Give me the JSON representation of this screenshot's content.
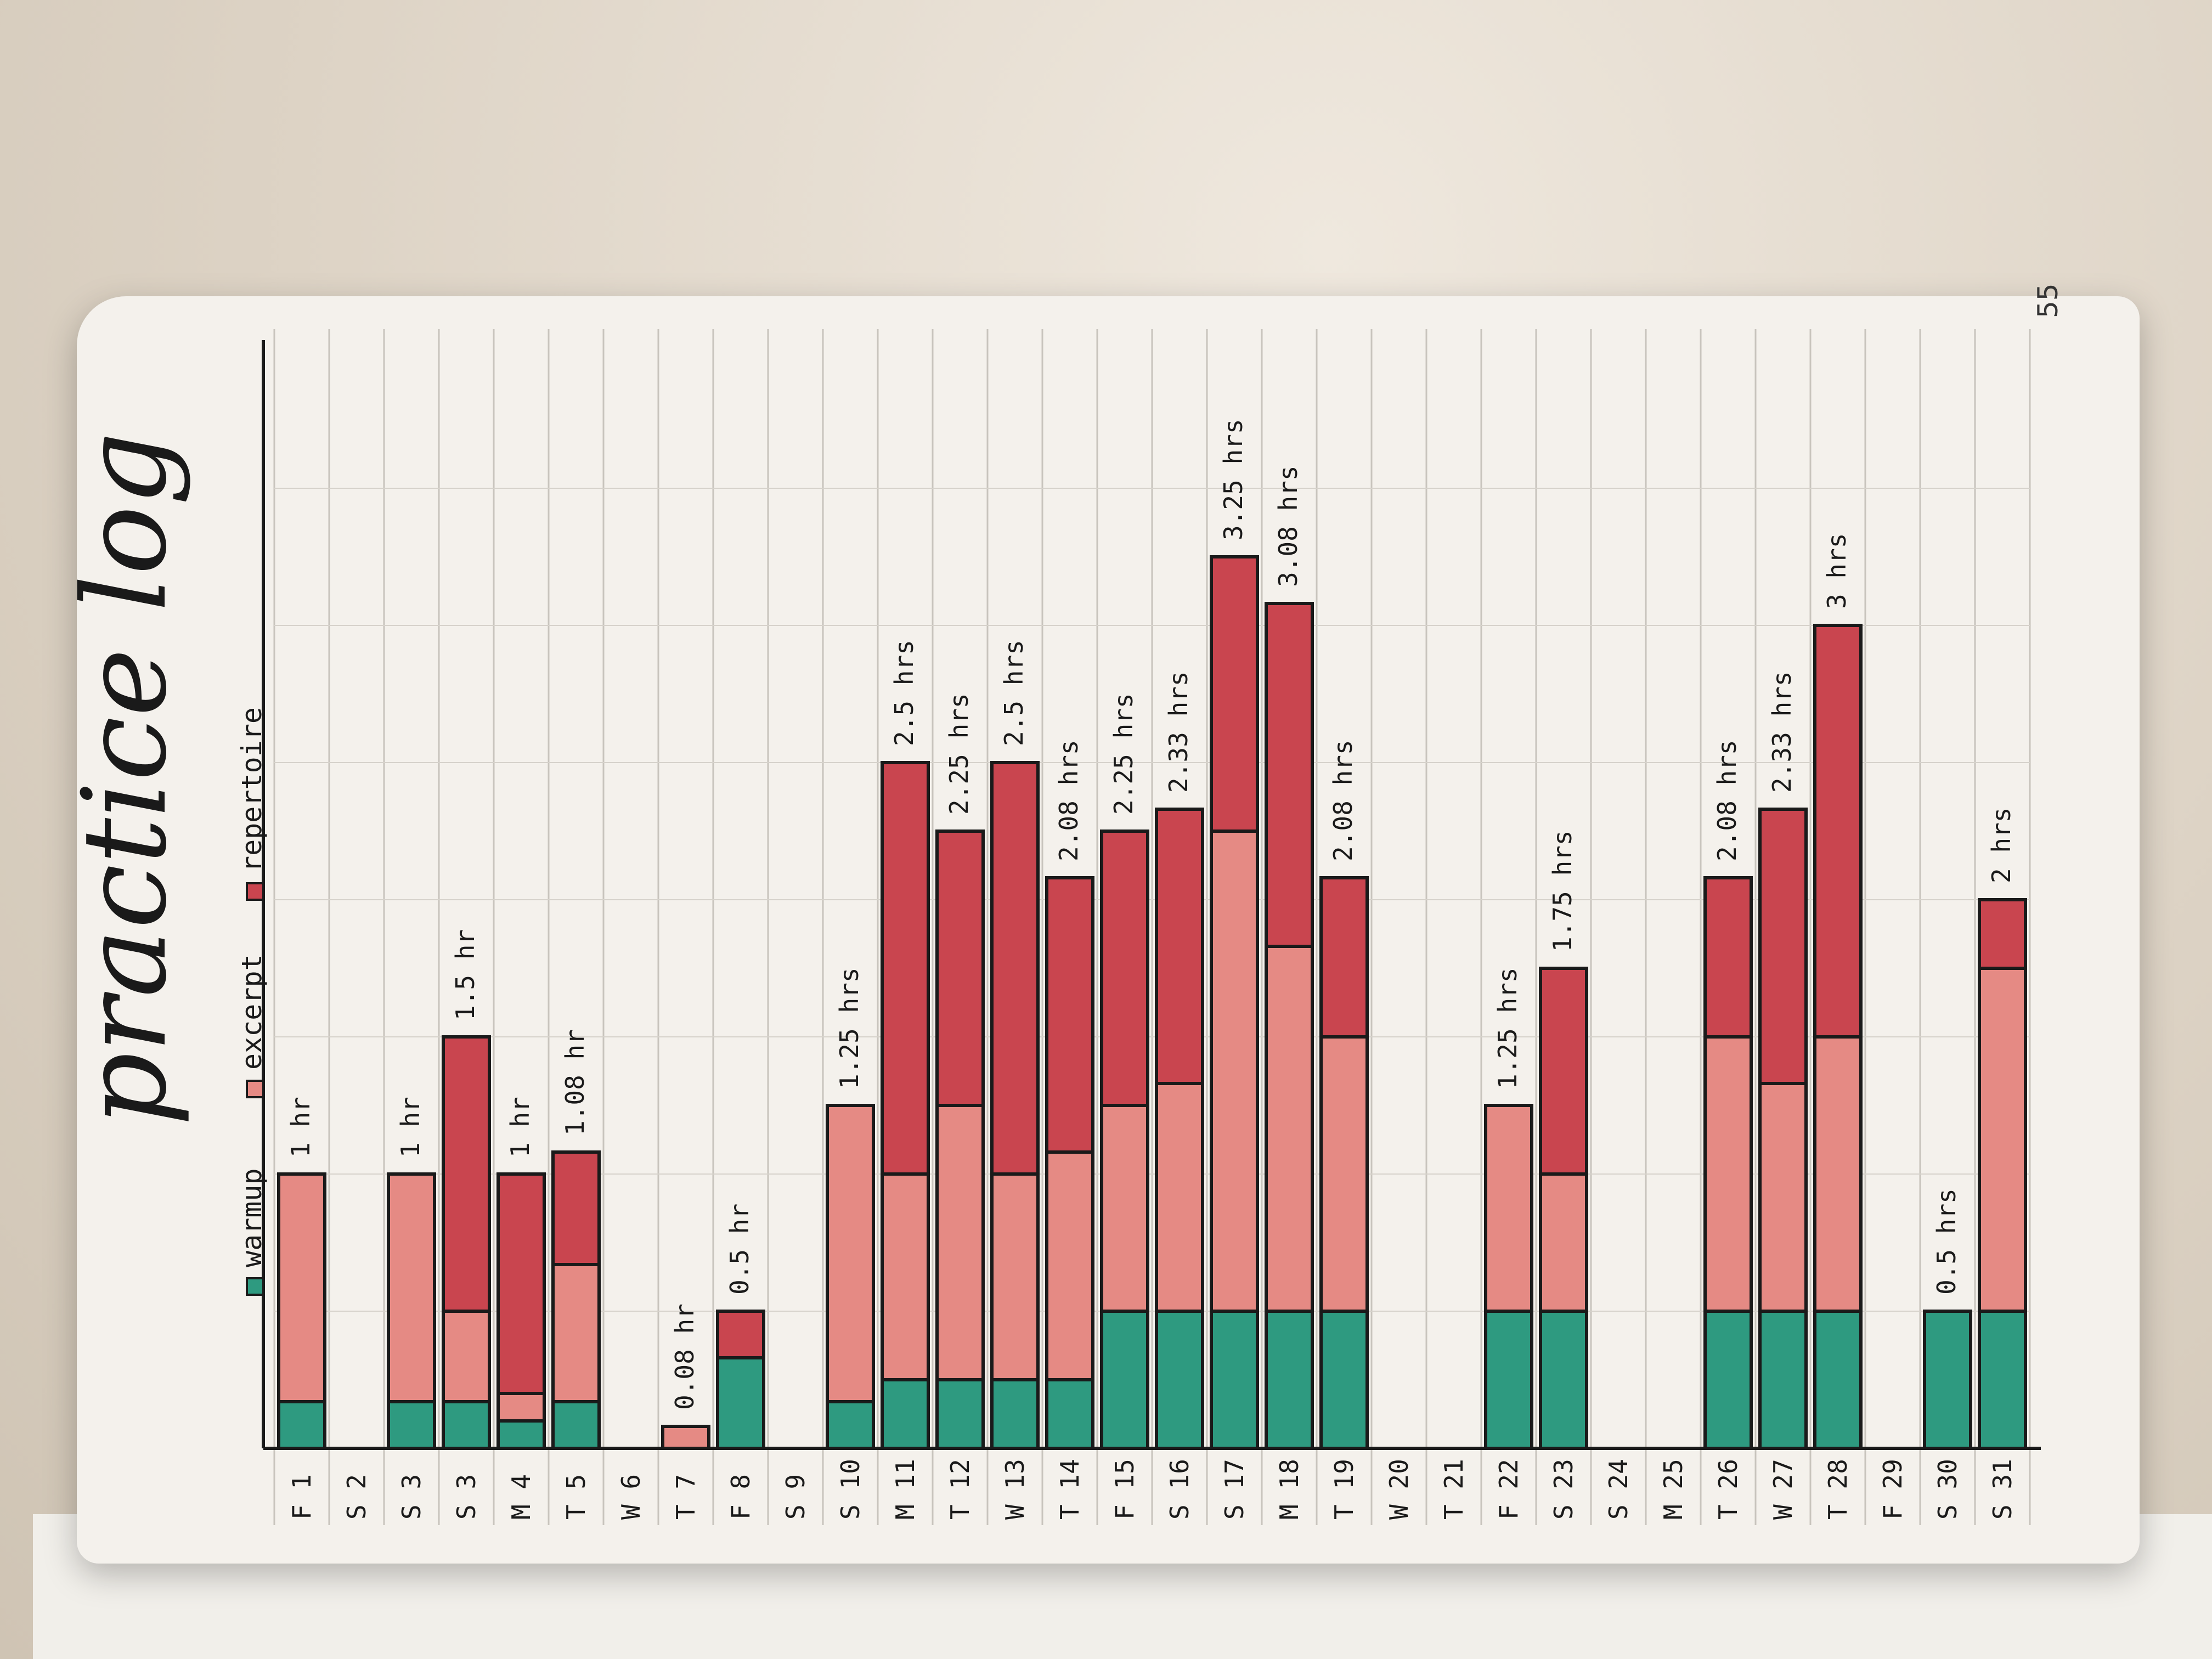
{
  "title": "practice log",
  "page_number": "55",
  "legend": [
    {
      "label": "warmup",
      "color": "#2e9a80"
    },
    {
      "label": "excerpt",
      "color": "#e58a84"
    },
    {
      "label": "repertoire",
      "color": "#c9454f"
    }
  ],
  "colors": {
    "warmup": "#2e9a80",
    "excerpt": "#e58a84",
    "repertoire": "#c9454f",
    "ink": "#1a1a1a"
  },
  "chart_data": {
    "type": "bar",
    "stacked": true,
    "orientation": "vertical",
    "title": "practice log",
    "categories": [
      {
        "day": "F",
        "date": "1",
        "total_label": "1 hr",
        "warmup": 0.17,
        "excerpt": 0.83,
        "repertoire": 0
      },
      {
        "day": "S",
        "date": "2",
        "total_label": "",
        "warmup": 0,
        "excerpt": 0,
        "repertoire": 0
      },
      {
        "day": "S",
        "date": "3",
        "total_label": "1 hr",
        "warmup": 0.17,
        "excerpt": 0.83,
        "repertoire": 0
      },
      {
        "day": "S",
        "date": "3",
        "total_label": "1.5 hr",
        "warmup": 0.17,
        "excerpt": 0.33,
        "repertoire": 1.0
      },
      {
        "day": "M",
        "date": "4",
        "total_label": "1 hr",
        "warmup": 0.1,
        "excerpt": 0.1,
        "repertoire": 0.8
      },
      {
        "day": "T",
        "date": "5",
        "total_label": "1.08 hr",
        "warmup": 0.17,
        "excerpt": 0.5,
        "repertoire": 0.41
      },
      {
        "day": "W",
        "date": "6",
        "total_label": "",
        "warmup": 0,
        "excerpt": 0,
        "repertoire": 0
      },
      {
        "day": "T",
        "date": "7",
        "total_label": "0.08 hr",
        "warmup": 0,
        "excerpt": 0.08,
        "repertoire": 0
      },
      {
        "day": "F",
        "date": "8",
        "total_label": "0.5 hr",
        "warmup": 0.33,
        "excerpt": 0,
        "repertoire": 0.17
      },
      {
        "day": "S",
        "date": "9",
        "total_label": "",
        "warmup": 0,
        "excerpt": 0,
        "repertoire": 0
      },
      {
        "day": "S",
        "date": "10",
        "total_label": "1.25 hrs",
        "warmup": 0.17,
        "excerpt": 1.08,
        "repertoire": 0
      },
      {
        "day": "M",
        "date": "11",
        "total_label": "2.5 hrs",
        "warmup": 0.25,
        "excerpt": 0.75,
        "repertoire": 1.5
      },
      {
        "day": "T",
        "date": "12",
        "total_label": "2.25 hrs",
        "warmup": 0.25,
        "excerpt": 1.0,
        "repertoire": 1.0
      },
      {
        "day": "W",
        "date": "13",
        "total_label": "2.5 hrs",
        "warmup": 0.25,
        "excerpt": 0.75,
        "repertoire": 1.5
      },
      {
        "day": "T",
        "date": "14",
        "total_label": "2.08 hrs",
        "warmup": 0.25,
        "excerpt": 0.83,
        "repertoire": 1.0
      },
      {
        "day": "F",
        "date": "15",
        "total_label": "2.25 hrs",
        "warmup": 0.5,
        "excerpt": 0.75,
        "repertoire": 1.0
      },
      {
        "day": "S",
        "date": "16",
        "total_label": "2.33 hrs",
        "warmup": 0.5,
        "excerpt": 0.83,
        "repertoire": 1.0
      },
      {
        "day": "S",
        "date": "17",
        "total_label": "3.25 hrs",
        "warmup": 0.5,
        "excerpt": 1.75,
        "repertoire": 1.0
      },
      {
        "day": "M",
        "date": "18",
        "total_label": "3.08 hrs",
        "warmup": 0.5,
        "excerpt": 1.33,
        "repertoire": 1.25
      },
      {
        "day": "T",
        "date": "19",
        "total_label": "2.08 hrs",
        "warmup": 0.5,
        "excerpt": 1.0,
        "repertoire": 0.58
      },
      {
        "day": "W",
        "date": "20",
        "total_label": "",
        "warmup": 0,
        "excerpt": 0,
        "repertoire": 0
      },
      {
        "day": "T",
        "date": "21",
        "total_label": "",
        "warmup": 0,
        "excerpt": 0,
        "repertoire": 0
      },
      {
        "day": "F",
        "date": "22",
        "total_label": "1.25 hrs",
        "warmup": 0.5,
        "excerpt": 0.75,
        "repertoire": 0
      },
      {
        "day": "S",
        "date": "23",
        "total_label": "1.75 hrs",
        "warmup": 0.5,
        "excerpt": 0.5,
        "repertoire": 0.75
      },
      {
        "day": "S",
        "date": "24",
        "total_label": "",
        "warmup": 0,
        "excerpt": 0,
        "repertoire": 0
      },
      {
        "day": "M",
        "date": "25",
        "total_label": "",
        "warmup": 0,
        "excerpt": 0,
        "repertoire": 0
      },
      {
        "day": "T",
        "date": "26",
        "total_label": "2.08 hrs",
        "warmup": 0.5,
        "excerpt": 1.0,
        "repertoire": 0.58
      },
      {
        "day": "W",
        "date": "27",
        "total_label": "2.33 hrs",
        "warmup": 0.5,
        "excerpt": 0.83,
        "repertoire": 1.0
      },
      {
        "day": "T",
        "date": "28",
        "total_label": "3 hrs",
        "warmup": 0.5,
        "excerpt": 1.0,
        "repertoire": 1.5
      },
      {
        "day": "F",
        "date": "29",
        "total_label": "",
        "warmup": 0,
        "excerpt": 0,
        "repertoire": 0
      },
      {
        "day": "S",
        "date": "30",
        "total_label": "0.5 hrs",
        "warmup": 0.5,
        "excerpt": 0,
        "repertoire": 0
      },
      {
        "day": "S",
        "date": "31",
        "total_label": "2 hrs",
        "warmup": 0.5,
        "excerpt": 1.25,
        "repertoire": 0.25
      }
    ],
    "series": [
      {
        "name": "warmup",
        "key": "warmup"
      },
      {
        "name": "excerpt",
        "key": "excerpt"
      },
      {
        "name": "repertoire",
        "key": "repertoire"
      }
    ],
    "ylim": [
      0,
      3.5
    ],
    "grid": true,
    "legend_position": "top"
  }
}
